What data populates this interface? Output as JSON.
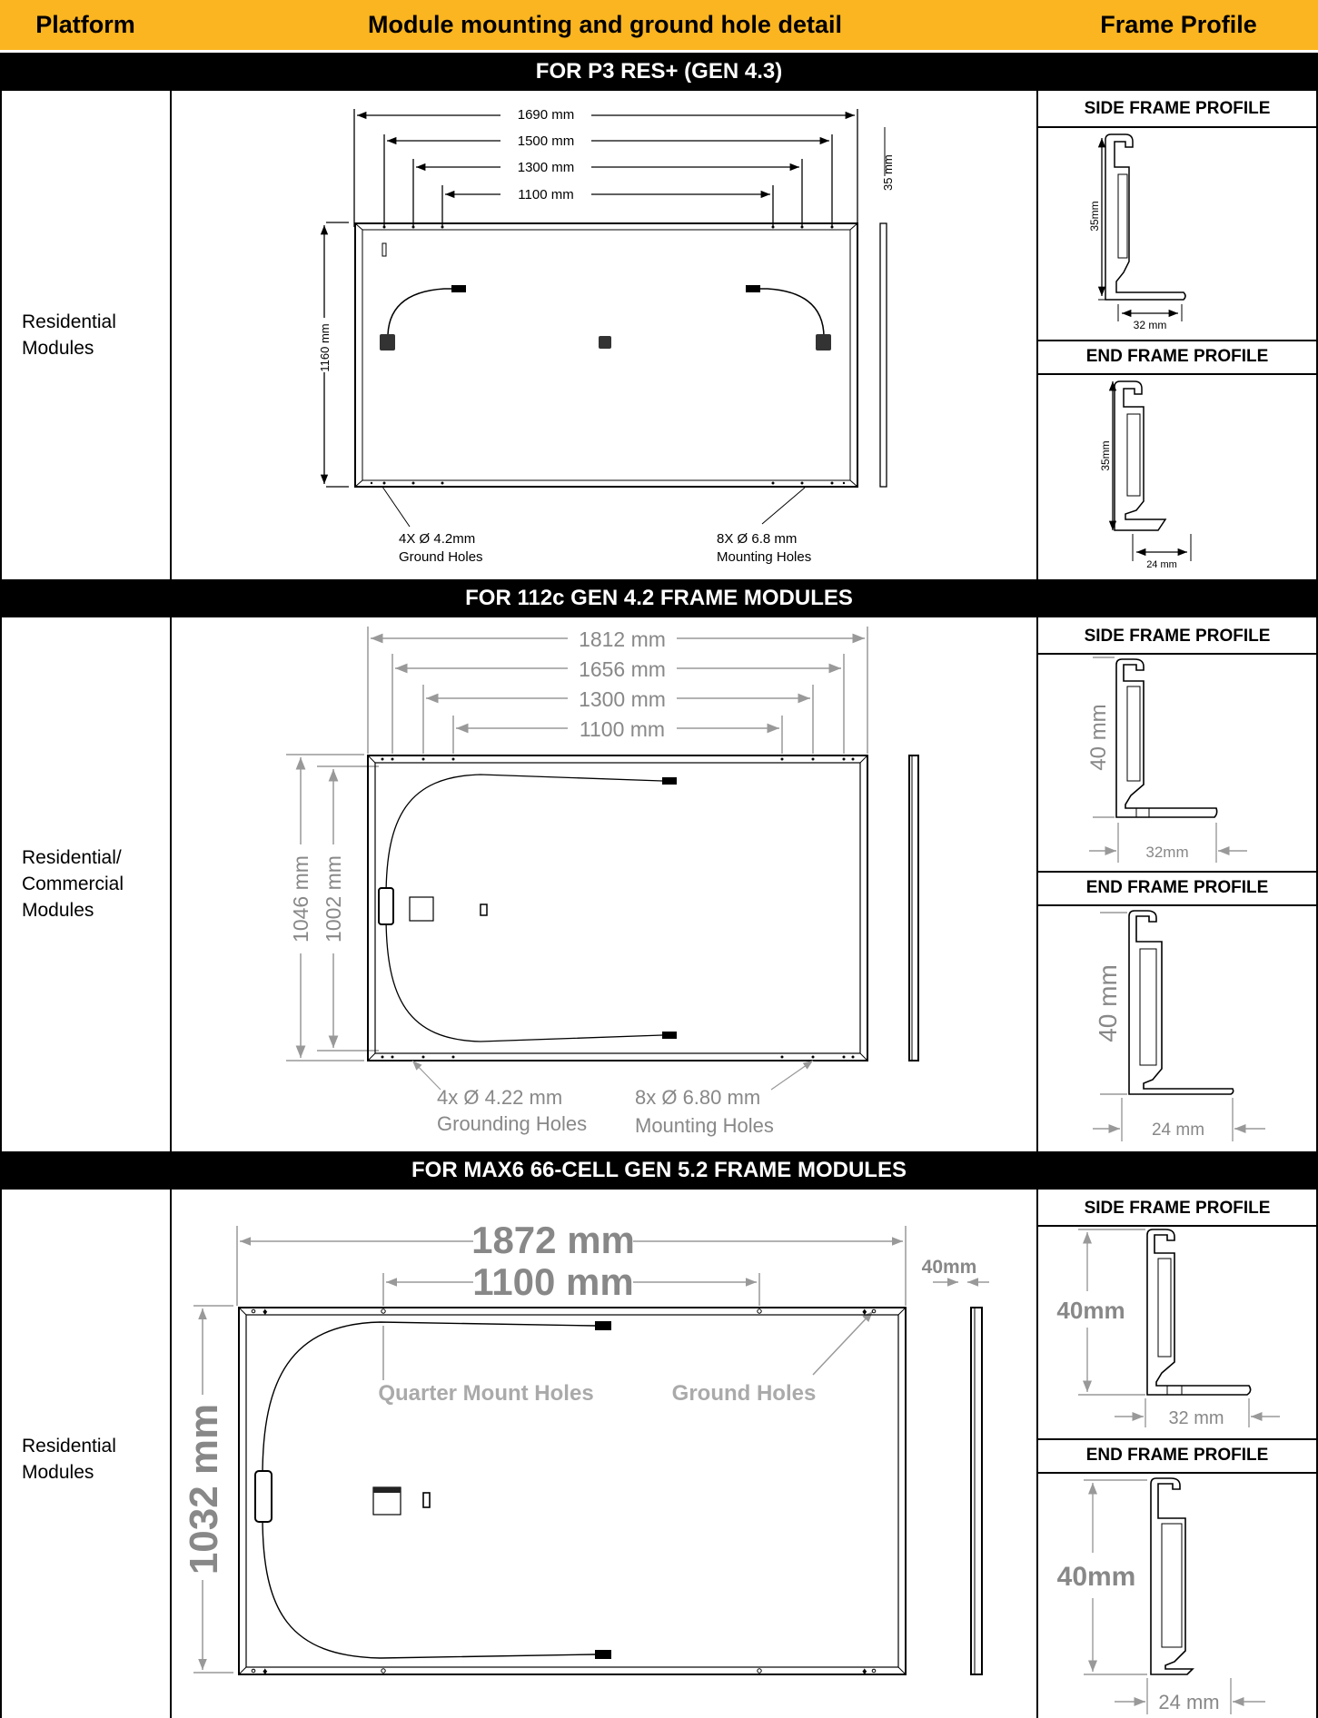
{
  "header": {
    "platform": "Platform",
    "detail": "Module mounting and ground hole detail",
    "profile": "Frame Profile"
  },
  "sections": [
    {
      "title": "FOR P3 RES+ (GEN 4.3)",
      "platform": "Residential\nModules",
      "dims": [
        "1690 mm",
        "1500 mm",
        "1300 mm",
        "1100 mm",
        "1160 mm",
        "35 mm"
      ],
      "notes": [
        "4X Ø 4.2mm",
        "Ground Holes",
        "8X Ø 6.8 mm",
        "Mounting Holes"
      ],
      "side_title": "SIDE FRAME PROFILE",
      "side_height": "35mm",
      "side_width": "32 mm",
      "end_title": "END FRAME PROFILE",
      "end_height": "35mm",
      "end_width": "24 mm"
    },
    {
      "title": "FOR 112c GEN 4.2 FRAME MODULES",
      "platform": "Residential/\nCommercial\nModules",
      "dims": [
        "1812 mm",
        "1656 mm",
        "1300 mm",
        "1100 mm",
        "1046 mm",
        "1002 mm"
      ],
      "notes": [
        "4x Ø 4.22 mm",
        "Grounding Holes",
        "8x Ø 6.80 mm",
        "Mounting Holes"
      ],
      "side_title": "SIDE FRAME PROFILE",
      "side_height": "40 mm",
      "side_width": "32mm",
      "end_title": "END FRAME PROFILE",
      "end_height": "40 mm",
      "end_width": "24 mm"
    },
    {
      "title": "FOR MAX6 66-CELL GEN 5.2 FRAME MODULES",
      "platform": "Residential\nModules",
      "dims": [
        "1872 mm",
        "1100 mm",
        "1032 mm",
        "40mm"
      ],
      "notes": [
        "Quarter Mount Holes",
        "Ground Holes"
      ],
      "side_title": "SIDE FRAME PROFILE",
      "side_height": "40mm",
      "side_width": "32 mm",
      "end_title": "END FRAME PROFILE",
      "end_height": "40mm",
      "end_width": "24 mm"
    }
  ]
}
